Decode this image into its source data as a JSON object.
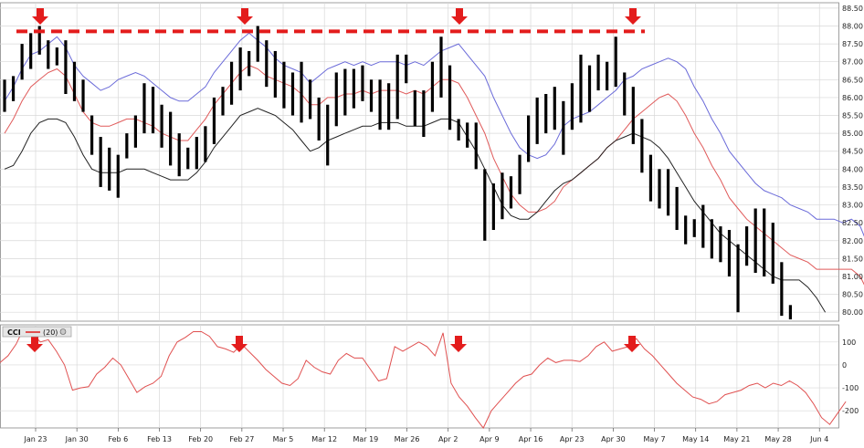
{
  "colors": {
    "grid": "#d8d8d8",
    "bar": "#000000",
    "outer_band": "#6b6bd9",
    "middle_band": "#e05a5a",
    "inner_line": "#222222",
    "cci_line": "#e05050",
    "marker": "#e31c1c",
    "panel_border": "#888888"
  },
  "chart_data": [
    {
      "type": "ohlc",
      "series": [
        {
          "color": "#6b6bd9",
          "values": [
            85.9,
            86.3,
            86.8,
            87.2,
            87.3,
            87.5,
            87.7,
            87.4,
            86.9,
            86.6,
            86.4,
            86.2,
            86.3,
            86.5,
            86.6,
            86.7,
            86.6,
            86.4,
            86.2,
            86.0,
            85.9,
            85.9,
            86.1,
            86.3,
            86.7,
            87.0,
            87.3,
            87.6,
            87.8,
            87.6,
            87.4,
            87.1,
            86.9,
            86.8,
            86.7,
            86.4,
            86.6,
            86.8,
            86.9,
            87.0,
            86.9,
            87.0,
            86.9,
            87.0,
            87.0,
            87.0,
            86.9,
            87.0,
            86.9,
            87.1,
            87.3,
            87.4,
            87.5,
            87.2,
            86.9,
            86.6,
            86.0,
            85.5,
            85.0,
            84.6,
            84.4,
            84.3,
            84.4,
            84.7,
            85.2,
            85.4,
            85.5,
            85.6,
            85.8,
            86.0,
            86.2,
            86.5,
            86.6,
            86.8,
            86.9,
            87.0,
            87.1,
            87.0,
            86.8,
            86.3,
            85.9,
            85.4,
            85.0,
            84.5,
            84.2,
            83.9,
            83.6,
            83.4,
            83.3,
            83.2,
            83.0,
            82.9,
            82.8,
            82.6,
            82.6,
            82.6,
            82.5,
            82.6,
            82.4,
            81.8,
            81.3
          ]
        },
        {
          "color": "#e05a5a",
          "values": [
            85.0,
            85.4,
            85.9,
            86.3,
            86.5,
            86.7,
            86.8,
            86.6,
            86.1,
            85.6,
            85.3,
            85.2,
            85.2,
            85.3,
            85.4,
            85.4,
            85.3,
            85.2,
            85.0,
            84.9,
            84.8,
            84.8,
            85.1,
            85.4,
            85.8,
            86.1,
            86.4,
            86.7,
            86.9,
            86.8,
            86.6,
            86.5,
            86.4,
            86.3,
            86.1,
            85.8,
            85.8,
            86.0,
            86.0,
            86.1,
            86.1,
            86.2,
            86.1,
            86.2,
            86.2,
            86.2,
            86.1,
            86.2,
            86.1,
            86.3,
            86.5,
            86.5,
            86.4,
            86.0,
            85.5,
            85.0,
            84.3,
            83.8,
            83.3,
            83.0,
            82.8,
            82.8,
            82.9,
            83.1,
            83.5,
            83.7,
            83.9,
            84.1,
            84.3,
            84.6,
            84.8,
            85.1,
            85.4,
            85.6,
            85.8,
            86.0,
            86.1,
            85.9,
            85.5,
            85.0,
            84.6,
            84.1,
            83.7,
            83.2,
            82.9,
            82.6,
            82.4,
            82.2,
            82.0,
            81.8,
            81.6,
            81.5,
            81.4,
            81.2,
            81.2,
            81.2,
            81.2,
            81.2,
            81.0,
            80.5,
            80.0
          ]
        },
        {
          "color": "#222222",
          "values": [
            84.0,
            84.1,
            84.5,
            85.0,
            85.3,
            85.4,
            85.4,
            85.3,
            84.9,
            84.4,
            84.0,
            83.9,
            83.9,
            83.9,
            84.0,
            84.0,
            84.0,
            83.9,
            83.8,
            83.7,
            83.7,
            83.7,
            83.9,
            84.2,
            84.6,
            84.9,
            85.2,
            85.5,
            85.6,
            85.7,
            85.6,
            85.5,
            85.3,
            85.1,
            84.8,
            84.5,
            84.6,
            84.8,
            84.9,
            85.0,
            85.1,
            85.2,
            85.2,
            85.3,
            85.3,
            85.3,
            85.2,
            85.2,
            85.2,
            85.3,
            85.4,
            85.4,
            85.3,
            84.9,
            84.5,
            84.0,
            83.5,
            83.0,
            82.7,
            82.6,
            82.6,
            82.8,
            83.1,
            83.4,
            83.6,
            83.7,
            83.9,
            84.1,
            84.3,
            84.6,
            84.8,
            84.9,
            85.0,
            84.9,
            84.8,
            84.6,
            84.3,
            83.9,
            83.5,
            83.1,
            82.8,
            82.5,
            82.2,
            82.0,
            81.8,
            81.6,
            81.4,
            81.2,
            81.0,
            80.9,
            80.9,
            80.9,
            80.7,
            80.4,
            80.0
          ]
        }
      ],
      "bars": [
        [
          85.6,
          86.5
        ],
        [
          85.9,
          86.6
        ],
        [
          86.5,
          87.5
        ],
        [
          86.8,
          87.8
        ],
        [
          87.2,
          88.0
        ],
        [
          86.8,
          87.6
        ],
        [
          86.9,
          87.4
        ],
        [
          86.1,
          87.6
        ],
        [
          85.9,
          87.0
        ],
        [
          85.6,
          86.5
        ],
        [
          84.4,
          85.5
        ],
        [
          83.5,
          84.9
        ],
        [
          83.4,
          84.6
        ],
        [
          83.2,
          84.4
        ],
        [
          84.3,
          85.0
        ],
        [
          84.6,
          85.5
        ],
        [
          85.0,
          86.4
        ],
        [
          85.0,
          86.3
        ],
        [
          84.6,
          85.8
        ],
        [
          84.1,
          85.6
        ],
        [
          83.8,
          85.0
        ],
        [
          84.0,
          84.6
        ],
        [
          84.0,
          84.9
        ],
        [
          84.2,
          85.2
        ],
        [
          84.7,
          86.0
        ],
        [
          85.5,
          86.3
        ],
        [
          85.8,
          87.0
        ],
        [
          86.2,
          87.4
        ],
        [
          86.6,
          87.3
        ],
        [
          87.0,
          88.0
        ],
        [
          86.3,
          87.6
        ],
        [
          86.0,
          87.3
        ],
        [
          85.7,
          87.0
        ],
        [
          85.5,
          86.7
        ],
        [
          85.3,
          87.0
        ],
        [
          85.4,
          86.5
        ],
        [
          84.8,
          86.0
        ],
        [
          84.1,
          85.8
        ],
        [
          85.2,
          86.7
        ],
        [
          85.5,
          86.8
        ],
        [
          85.7,
          86.8
        ],
        [
          85.9,
          86.9
        ],
        [
          85.6,
          86.5
        ],
        [
          85.1,
          86.5
        ],
        [
          85.1,
          86.4
        ],
        [
          85.4,
          87.2
        ],
        [
          86.4,
          87.2
        ],
        [
          85.2,
          86.2
        ],
        [
          84.9,
          86.2
        ],
        [
          85.6,
          87.0
        ],
        [
          86.0,
          87.7
        ],
        [
          85.1,
          86.9
        ],
        [
          84.8,
          85.4
        ],
        [
          84.6,
          85.3
        ],
        [
          84.0,
          85.3
        ],
        [
          82.0,
          84.0
        ],
        [
          82.3,
          83.6
        ],
        [
          82.6,
          83.9
        ],
        [
          82.9,
          83.8
        ],
        [
          83.3,
          84.4
        ],
        [
          84.2,
          85.5
        ],
        [
          84.7,
          86.0
        ],
        [
          85.0,
          86.1
        ],
        [
          85.1,
          86.3
        ],
        [
          84.4,
          85.9
        ],
        [
          85.1,
          86.4
        ],
        [
          85.3,
          87.2
        ],
        [
          85.6,
          86.9
        ],
        [
          86.2,
          87.2
        ],
        [
          86.2,
          87.0
        ],
        [
          86.3,
          87.7
        ],
        [
          85.5,
          86.7
        ],
        [
          84.7,
          86.3
        ],
        [
          83.9,
          85.4
        ],
        [
          83.1,
          84.4
        ],
        [
          82.9,
          84.0
        ],
        [
          82.7,
          84.0
        ],
        [
          82.3,
          83.5
        ],
        [
          81.9,
          82.7
        ],
        [
          82.1,
          82.6
        ],
        [
          81.8,
          83.0
        ],
        [
          81.5,
          82.6
        ],
        [
          81.4,
          82.4
        ],
        [
          81.0,
          82.3
        ],
        [
          80.0,
          81.9
        ],
        [
          81.3,
          82.4
        ],
        [
          81.1,
          82.9
        ],
        [
          81.0,
          82.9
        ],
        [
          80.8,
          82.5
        ],
        [
          79.9,
          81.4
        ],
        [
          79.8,
          80.2
        ]
      ],
      "ylim": [
        79.75,
        88.65
      ],
      "y_ticks": [
        "88.50",
        "88.00",
        "87.50",
        "87.00",
        "86.50",
        "86.00",
        "85.50",
        "85.00",
        "84.50",
        "84.00",
        "83.50",
        "83.00",
        "82.50",
        "82.00",
        "81.50",
        "81.00",
        "80.50",
        "80.00"
      ],
      "x_ticks": [
        "Jan 23",
        "Jan 30",
        "Feb 6",
        "Feb 13",
        "Feb 20",
        "Feb 27",
        "Mar 5",
        "Mar 12",
        "Mar 19",
        "Mar 26",
        "Apr 2",
        "Apr 9",
        "Apr 16",
        "Apr 23",
        "Apr 30",
        "May 7",
        "May 14",
        "May 21",
        "May 28",
        "Jun 4"
      ],
      "resistance_level": 87.85,
      "marker_x": [
        6,
        33,
        62,
        91
      ]
    },
    {
      "type": "line",
      "title": "CCI",
      "subtitle": "(20)",
      "ylim": [
        -275,
        175
      ],
      "y_ticks": [
        "100",
        "0",
        "-100",
        "-200"
      ],
      "values": [
        10,
        40,
        90,
        165,
        140,
        100,
        110,
        60,
        0,
        -110,
        -100,
        -95,
        -40,
        -10,
        30,
        0,
        -60,
        -120,
        -95,
        -80,
        -50,
        40,
        100,
        120,
        145,
        145,
        125,
        80,
        70,
        55,
        90,
        55,
        20,
        -20,
        -50,
        -80,
        -90,
        -60,
        20,
        -10,
        -30,
        -40,
        20,
        50,
        30,
        30,
        -20,
        -70,
        -60,
        80,
        60,
        80,
        100,
        80,
        40,
        140,
        -80,
        -140,
        -180,
        -230,
        -275,
        -200,
        -160,
        -120,
        -80,
        -50,
        -40,
        0,
        30,
        10,
        20,
        20,
        15,
        40,
        80,
        100,
        60,
        70,
        80,
        115,
        70,
        40,
        0,
        -40,
        -80,
        -110,
        -140,
        -150,
        -170,
        -160,
        -130,
        -120,
        -110,
        -90,
        -80,
        -100,
        -80,
        -90,
        -70,
        -90,
        -120,
        -170,
        -230,
        -260,
        -210,
        -160
      ]
    }
  ]
}
